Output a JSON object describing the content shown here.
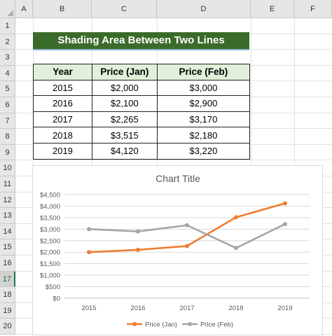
{
  "columns": [
    "A",
    "B",
    "C",
    "D",
    "E",
    "F"
  ],
  "rows": [
    "1",
    "2",
    "3",
    "4",
    "5",
    "6",
    "7",
    "8",
    "9",
    "10",
    "11",
    "12",
    "13",
    "14",
    "15",
    "16",
    "17",
    "18",
    "19",
    "20"
  ],
  "selected_row": "17",
  "sheet_title": "Shading Area Between Two Lines",
  "table": {
    "headers": [
      "Year",
      "Price (Jan)",
      "Price (Feb)"
    ],
    "rows": [
      [
        "2015",
        "$2,000",
        "$3,000"
      ],
      [
        "2016",
        "$2,100",
        "$2,900"
      ],
      [
        "2017",
        "$2,265",
        "$3,170"
      ],
      [
        "2018",
        "$3,515",
        "$2,180"
      ],
      [
        "2019",
        "$4,120",
        "$3,220"
      ]
    ]
  },
  "colors": {
    "banner": "#3b6b2a",
    "header_fill": "#e2efda",
    "jan_line": "#ed7d31",
    "feb_line": "#a5a5a5"
  },
  "chart_data": {
    "type": "line",
    "title": "Chart Title",
    "categories": [
      "2015",
      "2016",
      "2017",
      "2018",
      "2019"
    ],
    "series": [
      {
        "name": "Price (Jan)",
        "values": [
          2000,
          2100,
          2265,
          3515,
          4120
        ],
        "color": "#ed7d31"
      },
      {
        "name": "Price (Feb)",
        "values": [
          3000,
          2900,
          3170,
          2180,
          3220
        ],
        "color": "#a5a5a5"
      }
    ],
    "yticks": [
      "$0",
      "$500",
      "$1,000",
      "$1,500",
      "$2,000",
      "$2,500",
      "$3,000",
      "$3,500",
      "$4,000",
      "$4,500"
    ],
    "ylim": [
      0,
      4500
    ],
    "ystep": 500,
    "grid": true,
    "legend": "bottom"
  }
}
